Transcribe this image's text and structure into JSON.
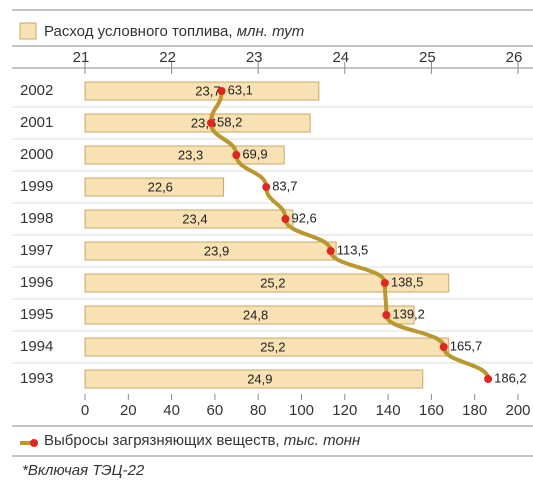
{
  "chart_data": {
    "type": "bar",
    "orientation": "horizontal",
    "categories": [
      "2002",
      "2001",
      "2000",
      "1999",
      "1998",
      "1997",
      "1996",
      "1995",
      "1994",
      "1993"
    ],
    "series": [
      {
        "name": "Расход условного топлива,",
        "unit": "млн. тут",
        "type": "bar",
        "axis": "x2",
        "color": "#f8e1b3",
        "values": [
          23.7,
          23.6,
          23.3,
          22.6,
          23.4,
          23.9,
          25.2,
          24.8,
          25.2,
          24.9
        ],
        "value_labels": [
          "23,7",
          "23,6",
          "23,3",
          "22,6",
          "23,4",
          "23,9",
          "25,2",
          "24,8",
          "25,2",
          "24,9"
        ]
      },
      {
        "name": "Выбросы загрязняющих веществ,",
        "unit": "тыс. тонн",
        "type": "line",
        "axis": "x",
        "color": "#b8982f",
        "marker_color": "#e0261e",
        "values": [
          63.1,
          58.2,
          69.9,
          83.7,
          92.6,
          113.5,
          138.5,
          139.2,
          165.7,
          186.2
        ],
        "value_labels": [
          "63,1",
          "58,2",
          "69,9",
          "83,7",
          "92,6",
          "113,5",
          "138,5",
          "139,2",
          "165,7",
          "186,2"
        ]
      }
    ],
    "xlim": [
      0,
      200
    ],
    "xticks": [
      0,
      20,
      40,
      60,
      80,
      100,
      120,
      140,
      160,
      180,
      200
    ],
    "x2lim": [
      21,
      26
    ],
    "x2ticks": [
      21,
      22,
      23,
      24,
      25,
      26
    ],
    "footnote": "*Включая ТЭЦ-22"
  }
}
